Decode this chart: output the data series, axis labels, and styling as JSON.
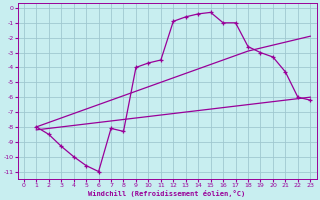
{
  "xlabel": "Windchill (Refroidissement éolien,°C)",
  "background_color": "#c8eef0",
  "grid_color": "#a0c8d0",
  "line_color": "#990099",
  "xlim": [
    -0.5,
    23.5
  ],
  "ylim": [
    -11.5,
    0.3
  ],
  "xticks": [
    0,
    1,
    2,
    3,
    4,
    5,
    6,
    7,
    8,
    9,
    10,
    11,
    12,
    13,
    14,
    15,
    16,
    17,
    18,
    19,
    20,
    21,
    22,
    23
  ],
  "yticks": [
    0,
    -1,
    -2,
    -3,
    -4,
    -5,
    -6,
    -7,
    -8,
    -9,
    -10,
    -11
  ],
  "line1_x": [
    1,
    2,
    3,
    4,
    5,
    6,
    7,
    8,
    9,
    10,
    11,
    12,
    13,
    14,
    15,
    16,
    17,
    18,
    19,
    20,
    21,
    22,
    23
  ],
  "line1_y": [
    -8.0,
    -8.5,
    -9.3,
    -10.0,
    -10.6,
    -11.0,
    -8.1,
    -8.3,
    -4.0,
    -3.7,
    -3.5,
    -0.9,
    -0.6,
    -0.4,
    -0.3,
    -1.0,
    -1.0,
    -2.6,
    -3.0,
    -3.3,
    -4.3,
    -6.0,
    -6.2
  ],
  "line2_x": [
    1,
    2,
    3,
    4,
    5,
    6,
    7,
    8,
    9,
    10,
    11,
    12,
    13,
    14,
    15,
    16,
    17,
    18,
    19,
    20,
    21,
    22,
    23
  ],
  "line2_y": [
    -8.0,
    -7.7,
    -7.4,
    -7.1,
    -6.8,
    -6.5,
    -6.2,
    -5.9,
    -5.6,
    -5.3,
    -5.0,
    -4.7,
    -4.4,
    -4.1,
    -3.8,
    -3.5,
    -3.2,
    -2.9,
    -2.7,
    -2.5,
    -2.3,
    -2.1,
    -1.9
  ],
  "line3_x": [
    1,
    2,
    3,
    4,
    5,
    6,
    7,
    8,
    9,
    10,
    11,
    12,
    13,
    14,
    15,
    16,
    17,
    18,
    19,
    20,
    21,
    22,
    23
  ],
  "line3_y": [
    -8.2,
    -8.1,
    -8.0,
    -7.9,
    -7.8,
    -7.7,
    -7.6,
    -7.5,
    -7.4,
    -7.3,
    -7.2,
    -7.1,
    -7.0,
    -6.9,
    -6.8,
    -6.7,
    -6.6,
    -6.5,
    -6.4,
    -6.3,
    -6.2,
    -6.1,
    -6.0
  ]
}
